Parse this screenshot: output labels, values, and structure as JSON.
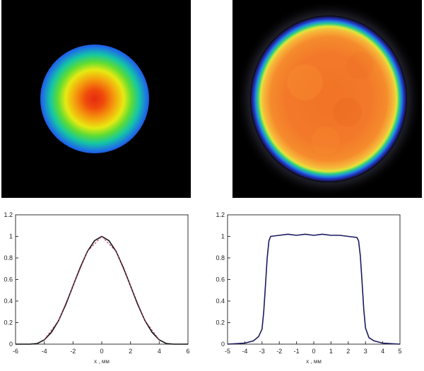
{
  "images": [
    {
      "profile": "gaussian",
      "colors": [
        "#e62b10",
        "#f5a50d",
        "#e6ea12",
        "#5fdc33",
        "#14c6a4",
        "#1d6fe6",
        "#2230c8"
      ]
    },
    {
      "profile": "flat-top",
      "colors": [
        "#f27325",
        "#f7b83a",
        "#dfe63a",
        "#33d07c",
        "#1e8be0",
        "#2233c4"
      ]
    }
  ],
  "chart_data": [
    {
      "type": "line",
      "xlabel": "x , мм",
      "ylabel": "",
      "xlim": [
        -6,
        6
      ],
      "ylim": [
        0,
        1.2
      ],
      "xticks": [
        "-6",
        "-4",
        "-2",
        "0",
        "2",
        "4",
        "6"
      ],
      "yticks": [
        "0",
        "0.2",
        "0.4",
        "0.6",
        "0.8",
        "1",
        "1.2"
      ],
      "grid": false,
      "series": [
        {
          "color": "#111111",
          "x": [
            -6,
            -5,
            -4.5,
            -4,
            -3.5,
            -3,
            -2.5,
            -2,
            -1.5,
            -1,
            -0.5,
            0,
            0.5,
            1,
            1.5,
            2,
            2.5,
            3,
            3.5,
            4,
            4.5,
            5,
            6
          ],
          "y": [
            0,
            0,
            0.005,
            0.04,
            0.11,
            0.22,
            0.37,
            0.54,
            0.71,
            0.86,
            0.96,
            1.0,
            0.96,
            0.86,
            0.71,
            0.54,
            0.37,
            0.22,
            0.11,
            0.04,
            0.005,
            0,
            0
          ]
        },
        {
          "color": "#b03060",
          "x": [
            -4,
            -3,
            -2,
            -1,
            0,
            1,
            2,
            3,
            4
          ],
          "y": [
            0.04,
            0.22,
            0.54,
            0.86,
            1.0,
            0.86,
            0.54,
            0.22,
            0.04
          ]
        }
      ]
    },
    {
      "type": "line",
      "xlabel": "x , мм",
      "ylabel": "",
      "xlim": [
        -5,
        5
      ],
      "ylim": [
        0,
        1.2
      ],
      "xticks": [
        "-5",
        "-4",
        "-3",
        "-2",
        "-1",
        "0",
        "1",
        "2",
        "3",
        "4",
        "5"
      ],
      "yticks": [
        "0",
        "0.2",
        "0.4",
        "0.6",
        "0.8",
        "1",
        "1.2"
      ],
      "grid": false,
      "series": [
        {
          "color": "#1a1a5e",
          "x": [
            -5,
            -4,
            -3.5,
            -3.2,
            -3,
            -2.9,
            -2.8,
            -2.7,
            -2.6,
            -2.5,
            -2.0,
            -1.5,
            -1.0,
            -0.5,
            0,
            0.5,
            1.0,
            1.5,
            2.0,
            2.5,
            2.6,
            2.7,
            2.8,
            2.9,
            3.0,
            3.2,
            3.5,
            4,
            5
          ],
          "y": [
            0,
            0.01,
            0.03,
            0.07,
            0.14,
            0.3,
            0.55,
            0.8,
            0.96,
            1.0,
            1.01,
            1.02,
            1.01,
            1.02,
            1.01,
            1.02,
            1.01,
            1.01,
            1.0,
            0.99,
            0.96,
            0.82,
            0.58,
            0.32,
            0.15,
            0.06,
            0.03,
            0.01,
            0
          ]
        }
      ]
    }
  ]
}
